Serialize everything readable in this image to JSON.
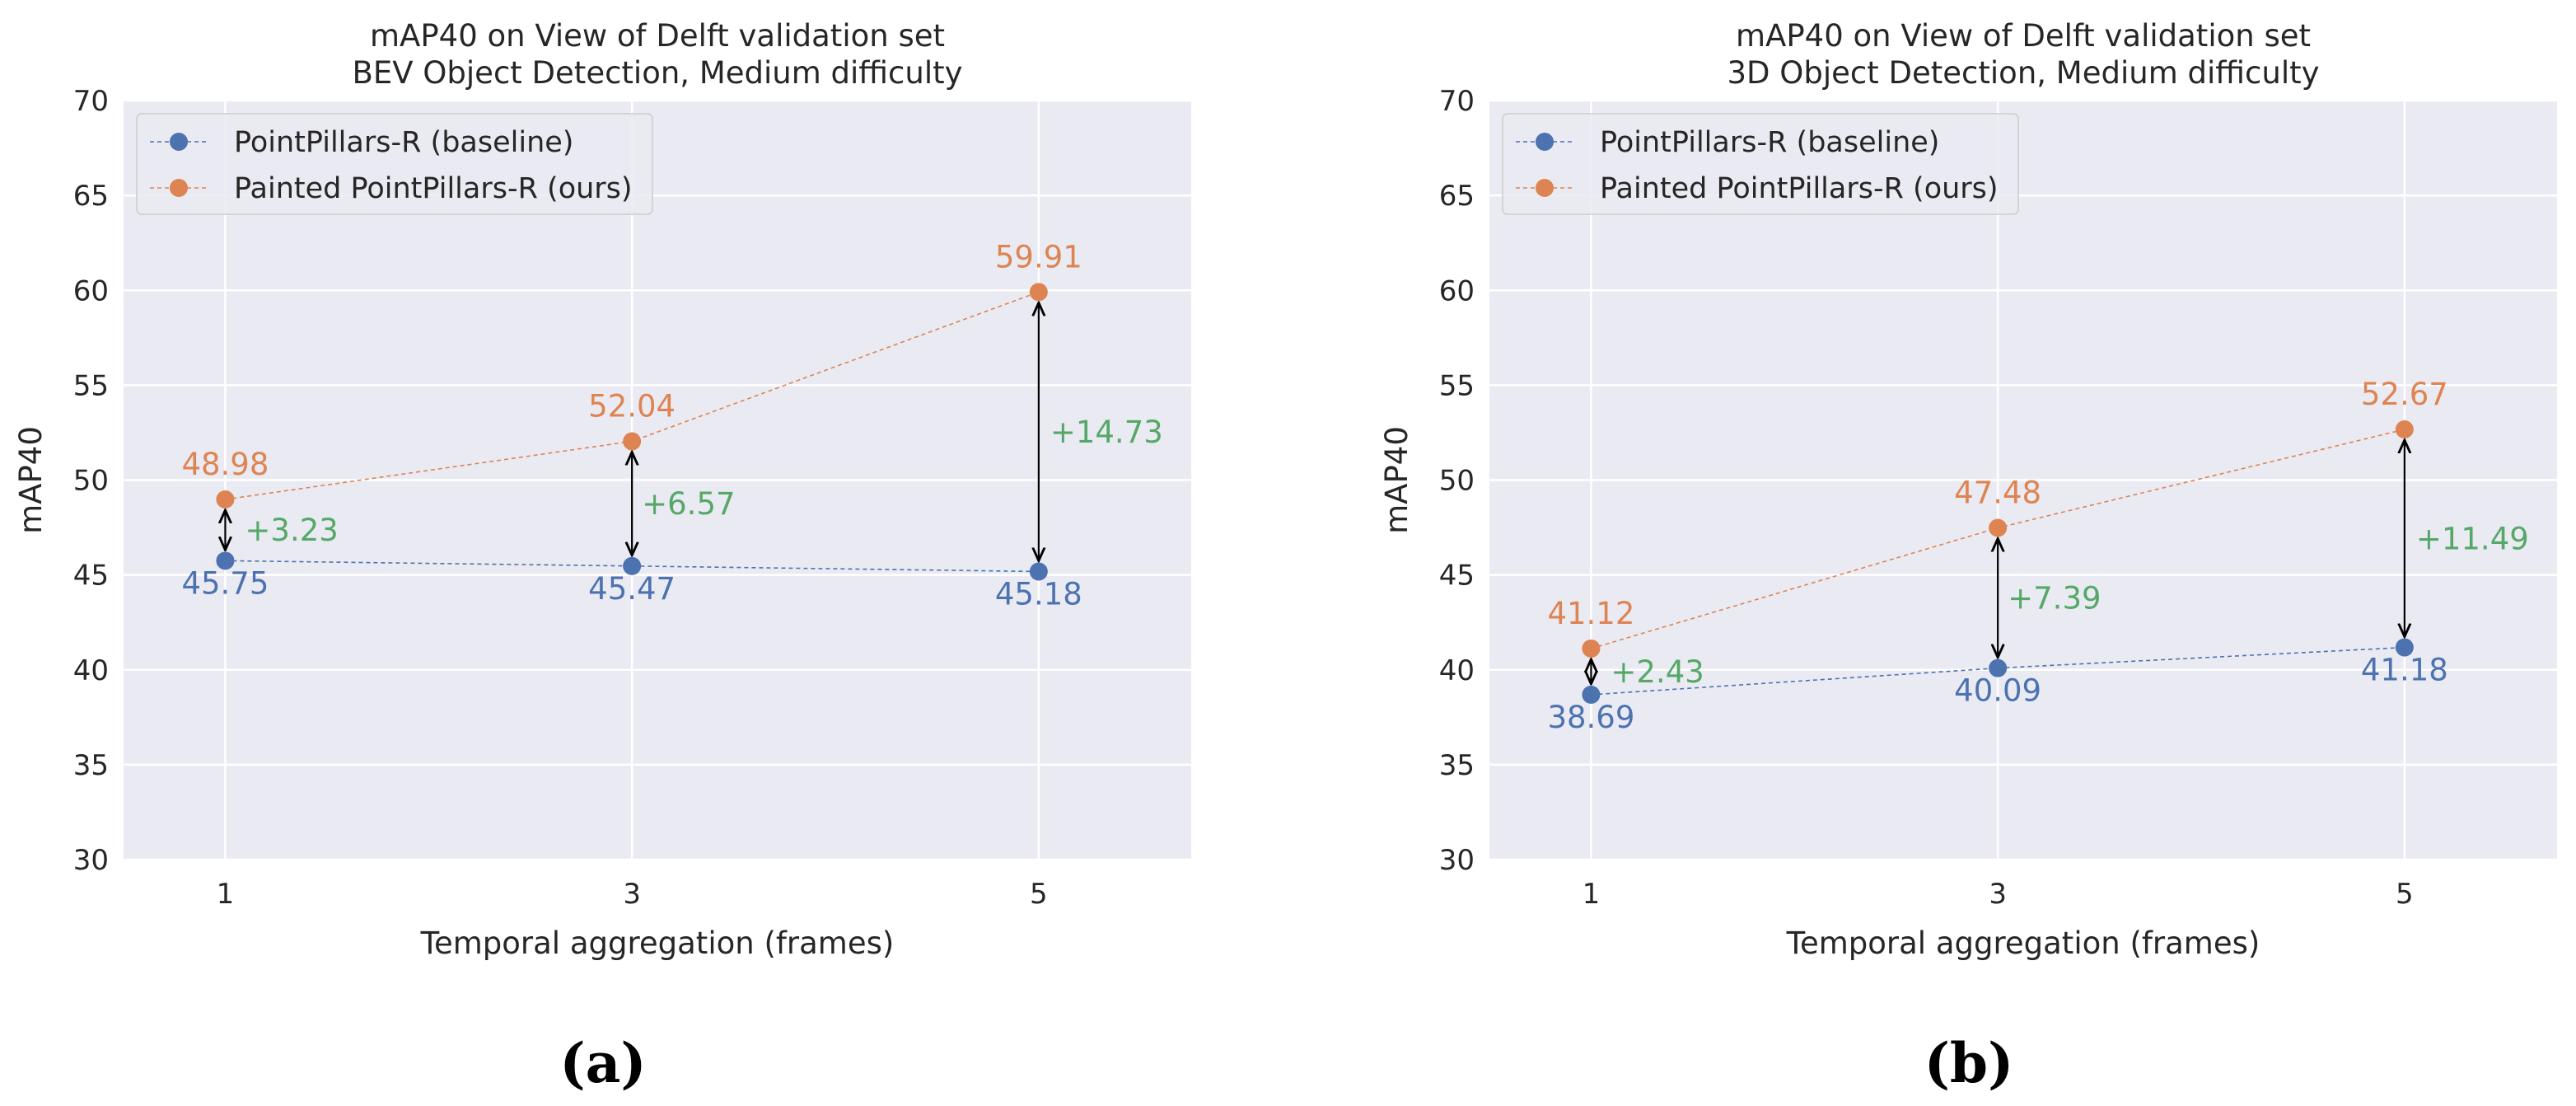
{
  "colors": {
    "baseline": "#4c72b0",
    "ours": "#dd8452",
    "delta": "#55a868",
    "panel_bg": "#eaeaf2",
    "grid": "#ffffff",
    "arrow": "#000000"
  },
  "chart_data": [
    {
      "type": "line",
      "caption": "(a)",
      "title": "mAP40 on View of Delft validation set",
      "subtitle": "BEV Object Detection, Medium difficulty",
      "xlabel": "Temporal aggregation (frames)",
      "ylabel": "mAP40",
      "x": [
        1,
        3,
        5
      ],
      "x_tick_labels": [
        "1",
        "3",
        "5"
      ],
      "xlim": [
        0.5,
        5.75
      ],
      "ylim": [
        30,
        70
      ],
      "y_ticks": [
        30,
        35,
        40,
        45,
        50,
        55,
        60,
        65,
        70
      ],
      "y_tick_labels": [
        "30",
        "35",
        "40",
        "45",
        "50",
        "55",
        "60",
        "65",
        "70"
      ],
      "grid": true,
      "legend_position": "top-left",
      "series": [
        {
          "name": "PointPillars-R (baseline)",
          "values": [
            45.75,
            45.47,
            45.18
          ],
          "value_labels": [
            "45.75",
            "45.47",
            "45.18"
          ]
        },
        {
          "name": "Painted PointPillars-R (ours)",
          "values": [
            48.98,
            52.04,
            59.91
          ],
          "value_labels": [
            "48.98",
            "52.04",
            "59.91"
          ]
        }
      ],
      "improvements": [
        3.23,
        6.57,
        14.73
      ],
      "improvement_labels": [
        "+3.23",
        "+6.57",
        "+14.73"
      ]
    },
    {
      "type": "line",
      "caption": "(b)",
      "title": "mAP40 on View of Delft validation set",
      "subtitle": "3D Object Detection, Medium difficulty",
      "xlabel": "Temporal aggregation (frames)",
      "ylabel": "mAP40",
      "x": [
        1,
        3,
        5
      ],
      "x_tick_labels": [
        "1",
        "3",
        "5"
      ],
      "xlim": [
        0.5,
        5.75
      ],
      "ylim": [
        30,
        70
      ],
      "y_ticks": [
        30,
        35,
        40,
        45,
        50,
        55,
        60,
        65,
        70
      ],
      "y_tick_labels": [
        "30",
        "35",
        "40",
        "45",
        "50",
        "55",
        "60",
        "65",
        "70"
      ],
      "grid": true,
      "legend_position": "top-left",
      "series": [
        {
          "name": "PointPillars-R (baseline)",
          "values": [
            38.69,
            40.09,
            41.18
          ],
          "value_labels": [
            "38.69",
            "40.09",
            "41.18"
          ]
        },
        {
          "name": "Painted PointPillars-R (ours)",
          "values": [
            41.12,
            47.48,
            52.67
          ],
          "value_labels": [
            "41.12",
            "47.48",
            "52.67"
          ]
        }
      ],
      "improvements": [
        2.43,
        7.39,
        11.49
      ],
      "improvement_labels": [
        "+2.43",
        "+7.39",
        "+11.49"
      ]
    }
  ]
}
